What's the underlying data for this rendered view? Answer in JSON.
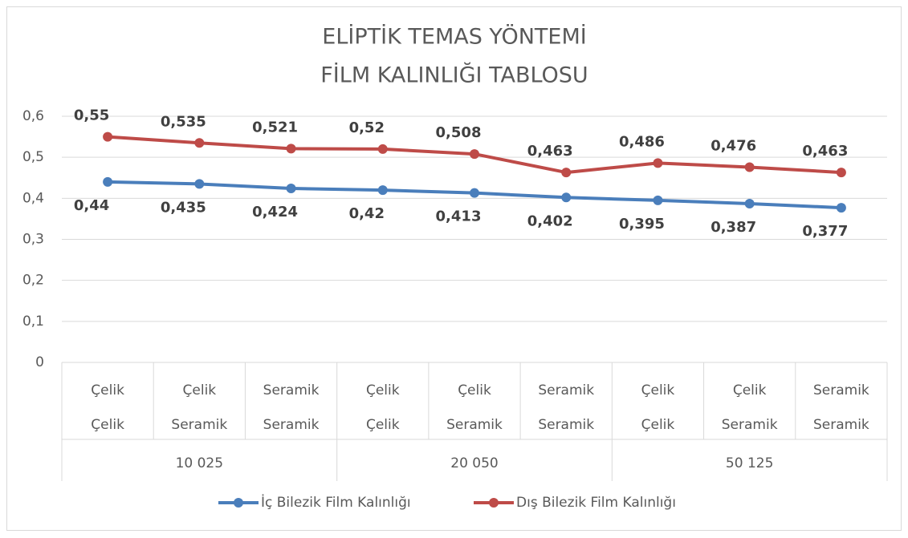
{
  "chart_data": {
    "type": "line",
    "title": [
      "ELİPTİK TEMAS YÖNTEMİ",
      "FİLM KALINLIĞI TABLOSU"
    ],
    "categories": [
      [
        "Çelik",
        "Çelik"
      ],
      [
        "Çelik",
        "Seramik"
      ],
      [
        "Seramik",
        "Seramik"
      ],
      [
        "Çelik",
        "Çelik"
      ],
      [
        "Çelik",
        "Seramik"
      ],
      [
        "Seramik",
        "Seramik"
      ],
      [
        "Çelik",
        "Çelik"
      ],
      [
        "Çelik",
        "Seramik"
      ],
      [
        "Seramik",
        "Seramik"
      ]
    ],
    "category_groups": [
      "10 025",
      "20 050",
      "50 125"
    ],
    "series": [
      {
        "name": "İç Bilezik Film Kalınlığı",
        "color": "#4a7ebb",
        "values": [
          0.44,
          0.435,
          0.424,
          0.42,
          0.413,
          0.402,
          0.395,
          0.387,
          0.377
        ],
        "value_labels": [
          "0,44",
          "0,435",
          "0,424",
          "0,42",
          "0,413",
          "0,402",
          "0,395",
          "0,387",
          "0,377"
        ]
      },
      {
        "name": "Dış Bilezik Film Kalınlığı",
        "color": "#be4b48",
        "values": [
          0.55,
          0.535,
          0.521,
          0.52,
          0.508,
          0.463,
          0.486,
          0.476,
          0.463
        ],
        "value_labels": [
          "0,55",
          "0,535",
          "0,521",
          "0,52",
          "0,508",
          "0,463",
          "0,486",
          "0,476",
          "0,463"
        ]
      }
    ],
    "ylim": [
      0,
      0.6
    ],
    "yticks": [
      0,
      {
        "value": 0.1,
        "label": "0,1"
      },
      {
        "value": 0.2,
        "label": "0,2"
      },
      {
        "value": 0.3,
        "label": "0,3"
      },
      {
        "value": 0.4,
        "label": "0,4"
      },
      {
        "value": 0.5,
        "label": "0,5"
      },
      {
        "value": 0.6,
        "label": "0,6"
      }
    ],
    "grid": true,
    "legend": "bottom"
  }
}
